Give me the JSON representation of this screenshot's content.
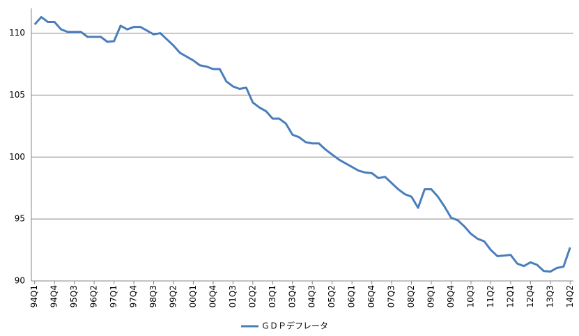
{
  "chart_data": {
    "type": "line",
    "categories": [
      "94Q1",
      null,
      null,
      "94Q4",
      null,
      null,
      "95Q3",
      null,
      null,
      "96Q2",
      null,
      null,
      "97Q1",
      null,
      null,
      "97Q4",
      null,
      null,
      "98Q3",
      null,
      null,
      "99Q2",
      null,
      null,
      "00Q1",
      null,
      null,
      "00Q4",
      null,
      null,
      "01Q3",
      null,
      null,
      "02Q2",
      null,
      null,
      "03Q1",
      null,
      null,
      "03Q4",
      null,
      null,
      "04Q3",
      null,
      null,
      "05Q2",
      null,
      null,
      "06Q1",
      null,
      null,
      "06Q4",
      null,
      null,
      "07Q3",
      null,
      null,
      "08Q2",
      null,
      null,
      "09Q1",
      null,
      null,
      "09Q4",
      null,
      null,
      "10Q3",
      null,
      null,
      "11Q2",
      null,
      null,
      "12Q1",
      null,
      null,
      "12Q4",
      null,
      null,
      "13Q3",
      null,
      null,
      "14Q2"
    ],
    "series": [
      {
        "name": "ＧＤＰデフレータ",
        "color": "#4a7ebb",
        "values": [
          110.7,
          111.3,
          110.9,
          110.9,
          110.3,
          110.1,
          110.1,
          110.1,
          109.7,
          109.7,
          109.7,
          109.3,
          109.35,
          110.6,
          110.3,
          110.5,
          110.5,
          110.2,
          109.9,
          110.0,
          109.5,
          109.0,
          108.4,
          108.1,
          107.8,
          107.4,
          107.3,
          107.1,
          107.1,
          106.1,
          105.7,
          105.5,
          105.6,
          104.4,
          104.0,
          103.7,
          103.1,
          103.1,
          102.7,
          101.8,
          101.6,
          101.2,
          101.1,
          101.1,
          100.6,
          100.2,
          99.8,
          99.5,
          99.2,
          98.9,
          98.75,
          98.7,
          98.3,
          98.4,
          97.9,
          97.4,
          97.0,
          96.8,
          95.9,
          97.4,
          97.4,
          96.8,
          96.0,
          95.1,
          94.9,
          94.4,
          93.8,
          93.4,
          93.2,
          92.5,
          92.0,
          92.05,
          92.1,
          91.4,
          91.2,
          91.5,
          91.3,
          90.8,
          90.75,
          91.05,
          91.15,
          92.7
        ]
      }
    ],
    "ylim": [
      90,
      112
    ],
    "yticks": [
      90,
      95,
      100,
      105,
      110
    ],
    "grid": true,
    "legend": "bottom"
  }
}
